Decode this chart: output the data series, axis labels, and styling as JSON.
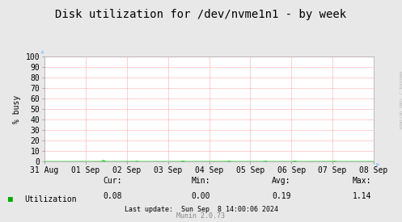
{
  "title": "Disk utilization for /dev/nvme1n1 - by week",
  "ylabel": "% busy",
  "background_color": "#e8e8e8",
  "plot_bg_color": "#ffffff",
  "grid_color": "#ff9999",
  "line_color": "#00cc00",
  "line_fill_color": "#00cc00",
  "ylim": [
    0,
    100
  ],
  "yticks": [
    0,
    10,
    20,
    30,
    40,
    50,
    60,
    70,
    80,
    90,
    100
  ],
  "x_labels": [
    "31 Aug",
    "01 Sep",
    "02 Sep",
    "03 Sep",
    "04 Sep",
    "05 Sep",
    "06 Sep",
    "07 Sep",
    "08 Sep"
  ],
  "legend_label": "Utilization",
  "legend_color": "#00aa00",
  "cur_val": "0.08",
  "min_val": "0.00",
  "avg_val": "0.19",
  "max_val": "1.14",
  "last_update": "Last update:  Sun Sep  8 14:00:06 2024",
  "munin_version": "Munin 2.0.73",
  "rrdtool_text": "RRDTOOL / TOBI OETIKER",
  "title_fontsize": 10,
  "axis_fontsize": 7,
  "small_fontsize": 6,
  "arrow_color": "#aaccff",
  "num_points": 672,
  "spike_positions": [
    0.18,
    0.28,
    0.42,
    0.56,
    0.67,
    0.76,
    0.88
  ],
  "spike_heights": [
    1.14,
    0.3,
    0.5,
    0.4,
    0.35,
    0.45,
    0.3
  ]
}
